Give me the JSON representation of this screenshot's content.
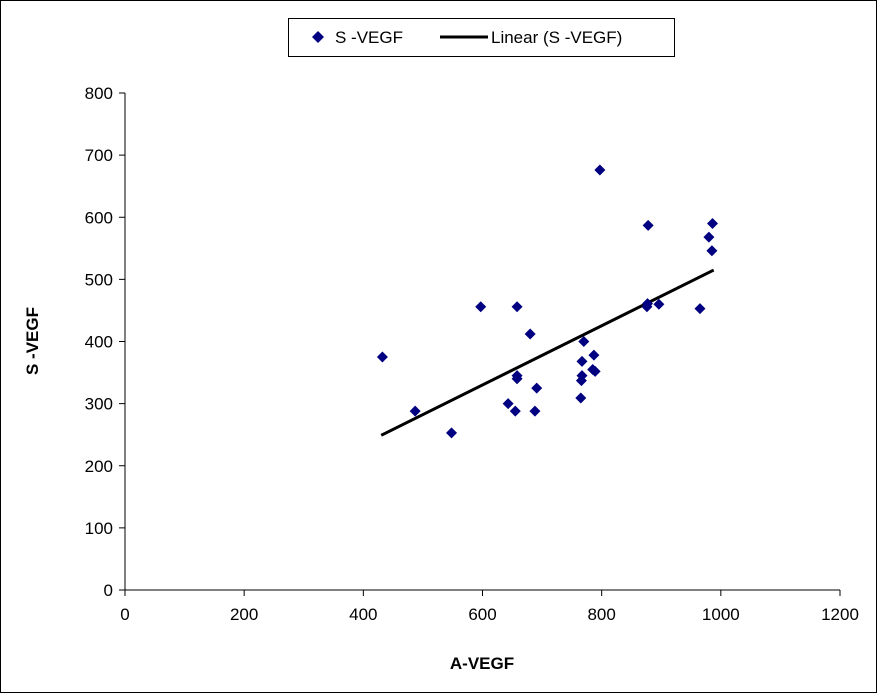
{
  "chart_data": {
    "type": "scatter",
    "title": "",
    "xlabel": "A-VEGF",
    "ylabel": "S -VEGF",
    "xlim": [
      0,
      1200
    ],
    "ylim": [
      0,
      800
    ],
    "x_ticks": [
      0,
      200,
      400,
      600,
      800,
      1000,
      1200
    ],
    "y_ticks": [
      0,
      100,
      200,
      300,
      400,
      500,
      600,
      700,
      800
    ],
    "grid": false,
    "legend_position": "top-center",
    "legend": [
      "S -VEGF",
      "Linear (S -VEGF)"
    ],
    "series": [
      {
        "name": "S -VEGF",
        "marker": "diamond",
        "color": "#000080",
        "points": [
          [
            432,
            375
          ],
          [
            487,
            288
          ],
          [
            548,
            253
          ],
          [
            597,
            456
          ],
          [
            643,
            300
          ],
          [
            655,
            288
          ],
          [
            658,
            345
          ],
          [
            658,
            340
          ],
          [
            658,
            456
          ],
          [
            680,
            412
          ],
          [
            688,
            288
          ],
          [
            691,
            325
          ],
          [
            765,
            309
          ],
          [
            766,
            337
          ],
          [
            767,
            345
          ],
          [
            767,
            368
          ],
          [
            770,
            400
          ],
          [
            785,
            355
          ],
          [
            787,
            378
          ],
          [
            789,
            352
          ],
          [
            797,
            676
          ],
          [
            876,
            456
          ],
          [
            877,
            461
          ],
          [
            878,
            587
          ],
          [
            896,
            460
          ],
          [
            965,
            453
          ],
          [
            980,
            568
          ],
          [
            985,
            546
          ],
          [
            986,
            590
          ]
        ]
      }
    ],
    "trendline": {
      "name": "Linear (S -VEGF)",
      "type": "linear",
      "color": "#000000",
      "x": [
        430,
        988
      ],
      "y": [
        249,
        515
      ]
    }
  }
}
